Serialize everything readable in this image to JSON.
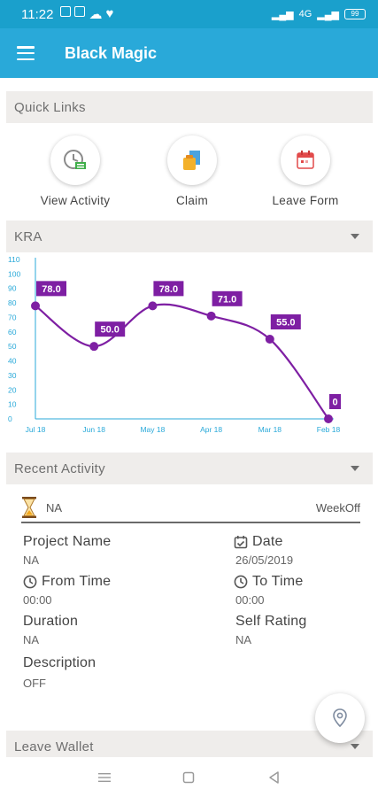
{
  "status_bar": {
    "time": "11:22",
    "network": "4G",
    "battery": "99"
  },
  "app_bar": {
    "title": "Black Magic"
  },
  "quick_links": {
    "header": "Quick Links",
    "items": [
      {
        "label": "View Activity",
        "icon": "view-activity-icon"
      },
      {
        "label": "Claim",
        "icon": "claim-icon"
      },
      {
        "label": "Leave Form",
        "icon": "leave-form-icon"
      }
    ]
  },
  "kra": {
    "header": "KRA",
    "chart_data": {
      "type": "line",
      "categories": [
        "Jul 18",
        "Jun 18",
        "May 18",
        "Apr 18",
        "Mar 18",
        "Feb 18"
      ],
      "series": [
        {
          "values": [
            78.0,
            50.0,
            78.0,
            71.0,
            55.0,
            0
          ]
        }
      ],
      "data_labels": [
        "78.0",
        "50.0",
        "78.0",
        "71.0",
        "55.0",
        "0"
      ],
      "y_ticks": [
        0,
        10,
        20,
        30,
        40,
        50,
        60,
        70,
        80,
        90,
        100,
        110
      ],
      "ylim": [
        0,
        110
      ],
      "title": "",
      "xlabel": "",
      "ylabel": "",
      "grid": false,
      "colors": {
        "line": "#7e1fa3",
        "axis": "#29a9d9",
        "label_bg": "#7e1fa3",
        "label_text": "#ffffff"
      }
    }
  },
  "recent_activity": {
    "header": "Recent Activity",
    "status": "NA",
    "day_type": "WeekOff",
    "fields": {
      "project_name": {
        "label": "Project Name",
        "value": "NA"
      },
      "date": {
        "label": "Date",
        "value": "26/05/2019"
      },
      "from_time": {
        "label": "From Time",
        "value": "00:00"
      },
      "to_time": {
        "label": "To Time",
        "value": "00:00"
      },
      "duration": {
        "label": "Duration",
        "value": "NA"
      },
      "self_rating": {
        "label": "Self Rating",
        "value": "NA"
      },
      "description": {
        "label": "Description",
        "value": "OFF"
      }
    }
  },
  "leave_wallet": {
    "header": "Leave Wallet"
  },
  "colors": {
    "status_bar": "#1aa0cc",
    "app_bar": "#29a9d9",
    "section_bg": "#efedeb",
    "accent": "#7e1fa3"
  }
}
